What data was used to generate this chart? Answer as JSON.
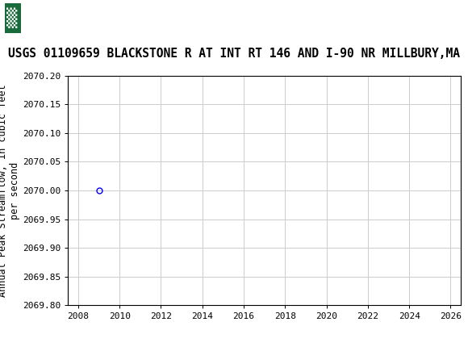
{
  "title": "USGS 01109659 BLACKSTONE R AT INT RT 146 AND I-90 NR MILLBURY,MA",
  "xlabel": "",
  "ylabel": "Annual Peak Streamflow, in cubic feet\nper second",
  "xlim": [
    2007.5,
    2026.5
  ],
  "ylim": [
    2069.8,
    2070.2
  ],
  "xticks": [
    2008,
    2010,
    2012,
    2014,
    2016,
    2018,
    2020,
    2022,
    2024,
    2026
  ],
  "yticks": [
    2069.8,
    2069.85,
    2069.9,
    2069.95,
    2070.0,
    2070.05,
    2070.1,
    2070.15,
    2070.2
  ],
  "data_x": [
    2009
  ],
  "data_y": [
    2070.0
  ],
  "marker_color": "blue",
  "marker_size": 5,
  "header_color": "#1a6b3c",
  "grid_color": "#cccccc",
  "background_color": "#ffffff",
  "font_family": "monospace",
  "title_fontsize": 10.5,
  "axis_label_fontsize": 8.5,
  "tick_fontsize": 8,
  "header_text": "USGS",
  "usgs_logo_symbol": "▒USGS"
}
